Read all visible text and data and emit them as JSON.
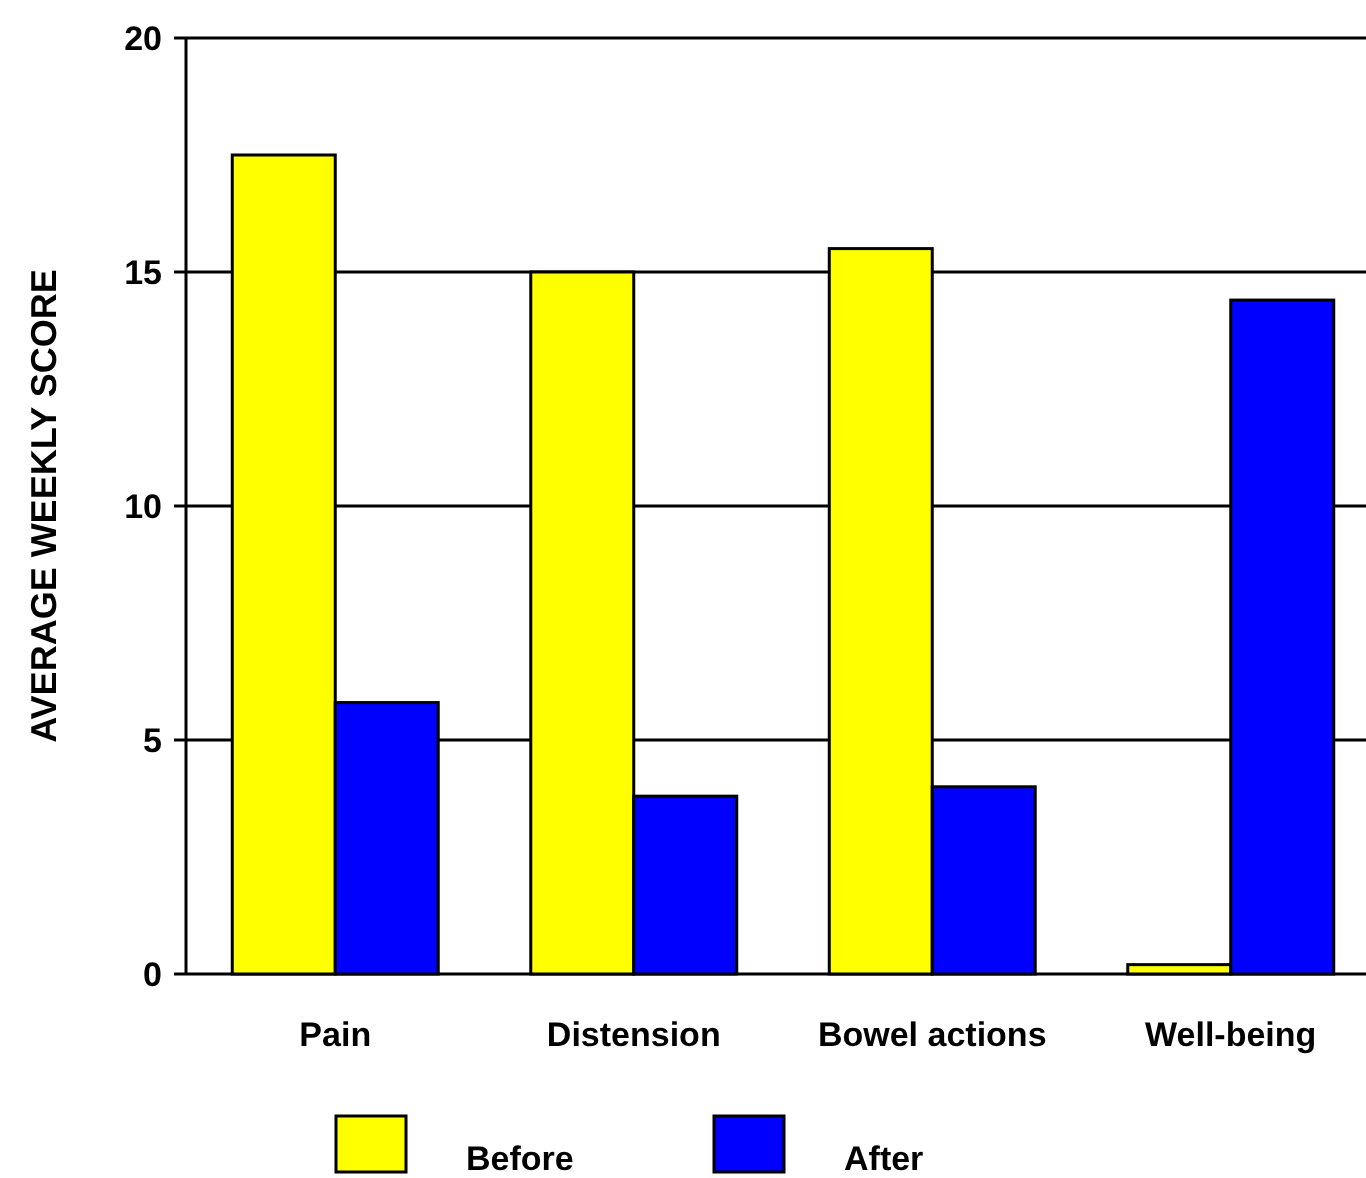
{
  "chart_data": {
    "type": "bar",
    "ylabel": "AVERAGE WEEKLY SCORE",
    "categories": [
      "Pain",
      "Distension",
      "Bowel actions",
      "Well-being"
    ],
    "series": [
      {
        "name": "Before",
        "color": "#ffff00",
        "values": [
          17.5,
          15,
          15.5,
          0.2
        ]
      },
      {
        "name": "After",
        "color": "#0000ff",
        "values": [
          5.8,
          3.8,
          4,
          14.4
        ]
      }
    ],
    "ylim": [
      0,
      20
    ],
    "yticks": [
      0,
      5,
      10,
      15,
      20
    ],
    "grid": "y",
    "legend": "bottom"
  }
}
